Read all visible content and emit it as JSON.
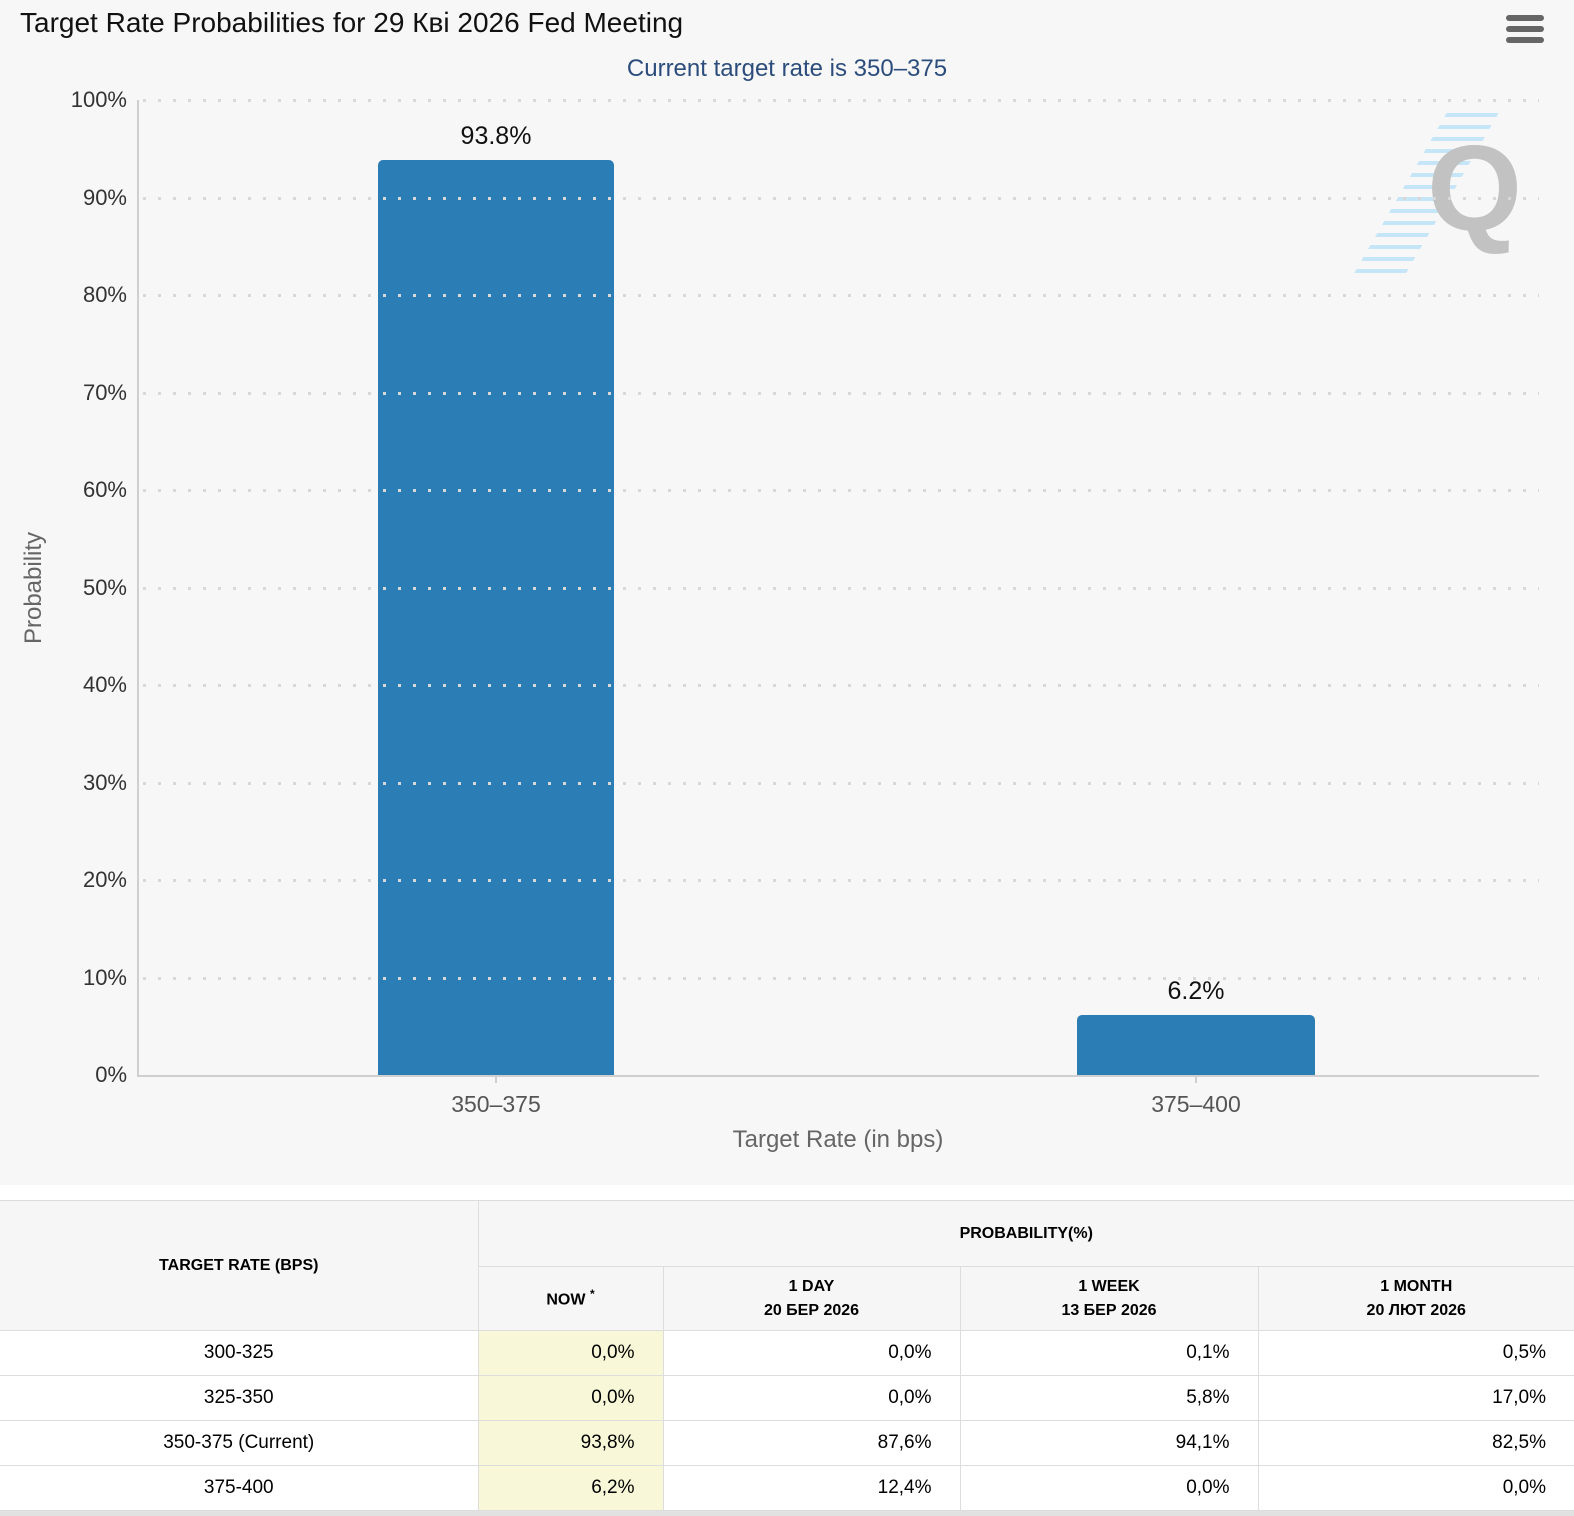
{
  "header": {
    "title": "Target Rate Probabilities for 29 Кві 2026 Fed Meeting"
  },
  "chart": {
    "subtitle": "Current target rate is 350–375",
    "ylabel": "Probability",
    "xlabel": "Target Rate (in bps)",
    "watermark_letter": "Q",
    "y_ticks": [
      "0%",
      "10%",
      "20%",
      "30%",
      "40%",
      "50%",
      "60%",
      "70%",
      "80%",
      "90%",
      "100%"
    ]
  },
  "chart_data": {
    "type": "bar",
    "title": "Target Rate Probabilities for 29 Кві 2026 Fed Meeting",
    "subtitle": "Current target rate is 350–375",
    "categories": [
      "350–375",
      "375–400"
    ],
    "values": [
      93.8,
      6.2
    ],
    "labels": [
      "93.8%",
      "6.2%"
    ],
    "xlabel": "Target Rate (in bps)",
    "ylabel": "Probability",
    "ylim": [
      0,
      100
    ],
    "y_tick_step": 10,
    "grid": "dotted-horizontal",
    "legend": "none",
    "bar_color": "#2b7db5"
  },
  "table": {
    "rate_header": "TARGET RATE (BPS)",
    "group_header": "PROBABILITY(%)",
    "columns": [
      {
        "label": "NOW",
        "sup": "*",
        "date": ""
      },
      {
        "label": "1 DAY",
        "date": "20 БЕР 2026"
      },
      {
        "label": "1 WEEK",
        "date": "13 БЕР 2026"
      },
      {
        "label": "1 MONTH",
        "date": "20 ЛЮТ 2026"
      }
    ],
    "rows": [
      {
        "rate": "300-325",
        "values": [
          "0,0%",
          "0,0%",
          "0,1%",
          "0,5%"
        ]
      },
      {
        "rate": "325-350",
        "values": [
          "0,0%",
          "0,0%",
          "5,8%",
          "17,0%"
        ]
      },
      {
        "rate": "350-375 (Current)",
        "values": [
          "93,8%",
          "87,6%",
          "94,1%",
          "82,5%"
        ]
      },
      {
        "rate": "375-400",
        "values": [
          "6,2%",
          "12,4%",
          "0,0%",
          "0,0%"
        ]
      }
    ]
  },
  "colors": {
    "bar": "#2b7db5",
    "subtitle_text": "#2c4d7c",
    "highlight_cell": "#f8f8d9",
    "panel_background": "#f7f7f7"
  }
}
